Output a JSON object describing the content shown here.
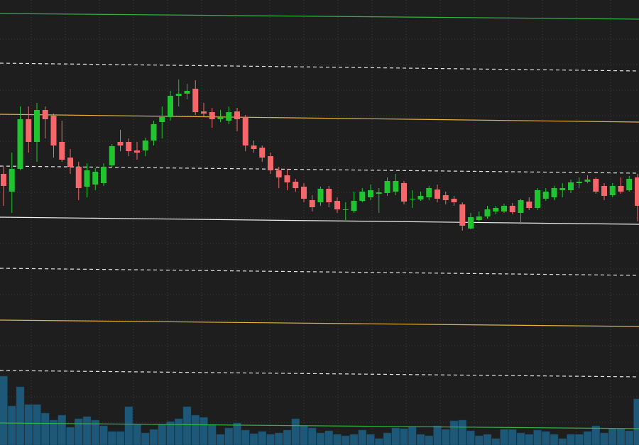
{
  "chart_data": {
    "type": "candlestick",
    "ylim": [
      0,
      627
    ],
    "up_color": "#1fc42f",
    "down_color": "#f6676b",
    "open": [
      382,
      357,
      389,
      459,
      427,
      472,
      464,
      427,
      405,
      392,
      364,
      367,
      369,
      394,
      427,
      427,
      415,
      415,
      429,
      455,
      462,
      492,
      495,
      502,
      470,
      469,
      459,
      457,
      470,
      462,
      422,
      419,
      407,
      387,
      380,
      371,
      364,
      345,
      342,
      361,
      344,
      331,
      330,
      344,
      349,
      354,
      355,
      357,
      369,
      346,
      346,
      349,
      360,
      352,
      347,
      339,
      305,
      317,
      322,
      329,
      329,
      337,
      327,
      343,
      334,
      347,
      349,
      359,
      359,
      369,
      371,
      375,
      365,
      352,
      365,
      359,
      377
    ],
    "high": [
      392,
      412,
      477,
      477,
      482,
      477,
      467,
      457,
      417,
      399,
      397,
      390,
      397,
      424,
      444,
      432,
      427,
      433,
      457,
      477,
      499,
      515,
      509,
      514,
      482,
      475,
      472,
      477,
      475,
      465,
      429,
      422,
      412,
      392,
      389,
      375,
      369,
      352,
      364,
      365,
      349,
      342,
      357,
      362,
      367,
      362,
      377,
      382,
      372,
      359,
      357,
      365,
      367,
      357,
      351,
      342,
      327,
      329,
      337,
      337,
      340,
      341,
      347,
      349,
      362,
      362,
      365,
      369,
      374,
      377,
      380,
      377,
      369,
      369,
      377,
      379,
      382
    ],
    "low": [
      337,
      327,
      387,
      412,
      399,
      432,
      405,
      399,
      382,
      345,
      349,
      359,
      365,
      391,
      414,
      407,
      402,
      407,
      422,
      432,
      457,
      477,
      487,
      465,
      462,
      447,
      455,
      452,
      442,
      414,
      412,
      399,
      382,
      362,
      359,
      357,
      342,
      329,
      337,
      335,
      327,
      317,
      327,
      342,
      345,
      327,
      351,
      352,
      339,
      334,
      344,
      345,
      342,
      339,
      337,
      302,
      304,
      315,
      319,
      325,
      327,
      325,
      311,
      331,
      331,
      344,
      345,
      349,
      355,
      362,
      369,
      354,
      345,
      349,
      354,
      357,
      315
    ],
    "close": [
      365,
      389,
      459,
      427,
      472,
      459,
      422,
      402,
      392,
      362,
      387,
      385,
      392,
      421,
      422,
      414,
      412,
      429,
      452,
      462,
      492,
      495,
      499,
      469,
      467,
      459,
      462,
      469,
      459,
      422,
      417,
      405,
      387,
      377,
      370,
      362,
      347,
      335,
      361,
      342,
      332,
      332,
      344,
      357,
      359,
      356,
      372,
      372,
      343,
      347,
      351,
      362,
      347,
      345,
      342,
      309,
      321,
      322,
      332,
      334,
      337,
      328,
      345,
      334,
      359,
      357,
      362,
      362,
      370,
      371,
      374,
      357,
      351,
      365,
      357,
      375,
      337
    ],
    "volume": [
      97,
      55,
      82,
      57,
      57,
      45,
      35,
      42,
      25,
      37,
      40,
      35,
      27,
      19,
      19,
      54,
      29,
      17,
      22,
      29,
      33,
      37,
      54,
      42,
      39,
      29,
      15,
      24,
      31,
      21,
      16,
      19,
      15,
      17,
      21,
      37,
      27,
      24,
      17,
      20,
      15,
      13,
      15,
      21,
      15,
      9,
      17,
      24,
      23,
      25,
      15,
      13,
      27,
      22,
      34,
      35,
      20,
      13,
      15,
      9,
      22,
      22,
      17,
      15,
      21,
      19,
      15,
      9,
      15,
      15,
      19,
      27,
      17,
      23,
      23,
      20,
      65
    ],
    "volume_color": "#1d5878",
    "lines": [
      {
        "style": "solid",
        "color": "#2fb43f",
        "values": [
          608,
          600
        ]
      },
      {
        "style": "dashed",
        "color": "#e6e6e6",
        "values": [
          538,
          527
        ]
      },
      {
        "style": "solid",
        "color": "#e7b43a",
        "values": [
          466,
          455
        ]
      },
      {
        "style": "dashed",
        "color": "#e6e6e6",
        "values": [
          393,
          383
        ]
      },
      {
        "style": "solid",
        "color": "#f2f2f2",
        "values": [
          321,
          311
        ]
      },
      {
        "style": "dashed",
        "color": "#e6e6e6",
        "values": [
          249,
          239
        ]
      },
      {
        "style": "solid",
        "color": "#e7b43a",
        "values": [
          176,
          167
        ]
      },
      {
        "style": "dashed",
        "color": "#e6e6e6",
        "values": [
          105,
          96
        ]
      },
      {
        "style": "solid",
        "color": "#2fb43f",
        "values": [
          31,
          23
        ]
      }
    ],
    "grid": true
  }
}
